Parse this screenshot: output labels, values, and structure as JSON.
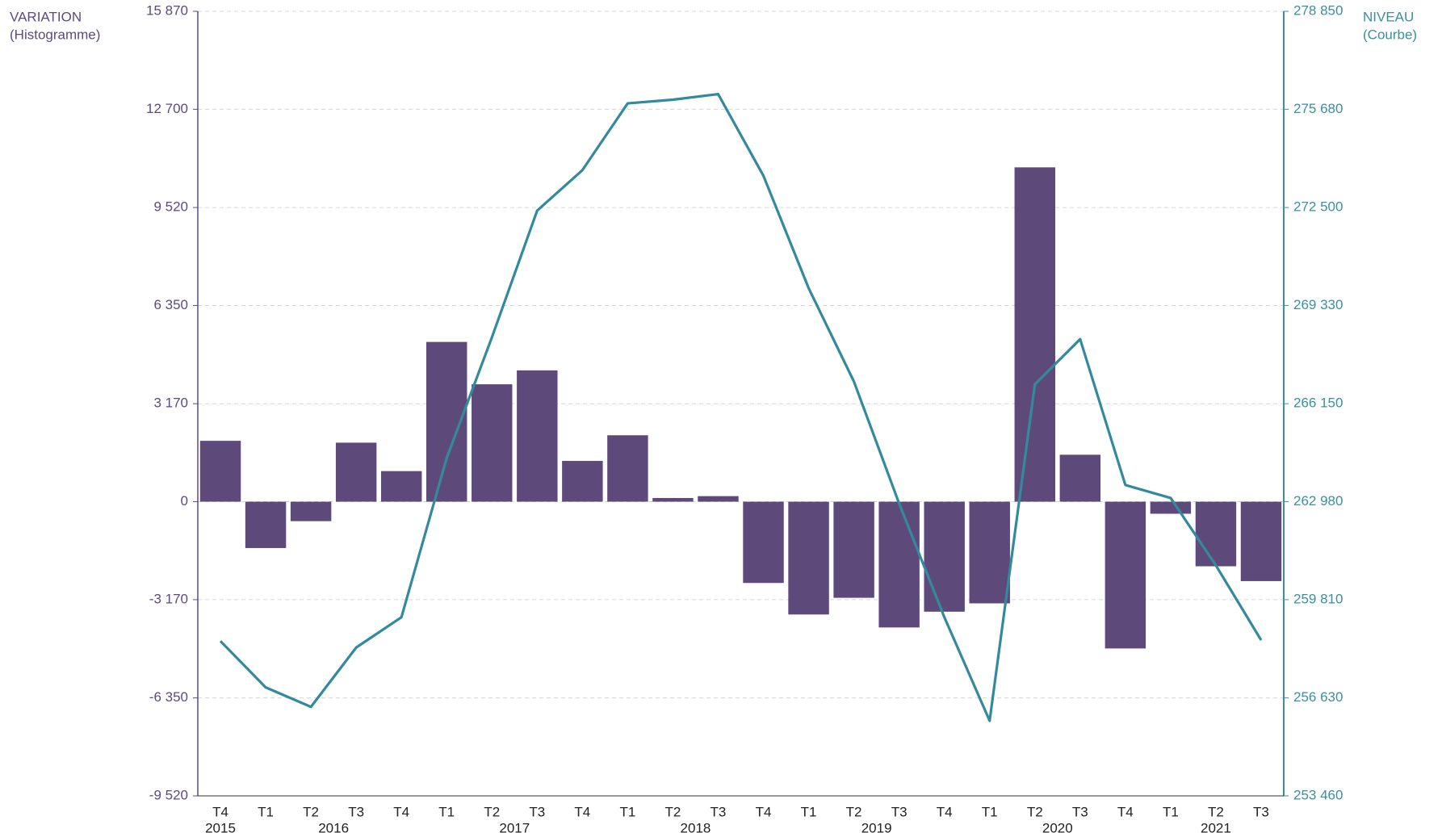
{
  "chart_data": {
    "type": "bar",
    "ylabel": [
      "VARIATION",
      "(Histogramme)"
    ],
    "y2label": [
      "NIVEAU",
      "(Courbe)"
    ],
    "categories": [
      "T4",
      "T1",
      "T2",
      "T3",
      "T4",
      "T1",
      "T2",
      "T3",
      "T4",
      "T1",
      "T2",
      "T3",
      "T4",
      "T1",
      "T2",
      "T3",
      "T4",
      "T1",
      "T2",
      "T3",
      "T4",
      "T1",
      "T2",
      "T3"
    ],
    "years": [
      "2015",
      "2016",
      "2017",
      "2018",
      "2019",
      "2020",
      "2021"
    ],
    "series": [
      {
        "name": "VARIATION",
        "type": "bar",
        "axis": "y",
        "color": "#5e4a7a",
        "values": [
          1970,
          -1500,
          -630,
          1910,
          990,
          5170,
          3800,
          4250,
          1320,
          2150,
          120,
          180,
          -2630,
          -3650,
          -3110,
          -4070,
          -3560,
          -3290,
          10820,
          1520,
          -4750,
          -390,
          -2090,
          -2570
        ]
      },
      {
        "name": "NIVEAU",
        "type": "line",
        "axis": "y2",
        "color": "#338a9c",
        "values": [
          258470,
          256970,
          256340,
          258260,
          259240,
          264390,
          268300,
          272400,
          273710,
          275870,
          275990,
          276170,
          273530,
          269890,
          266870,
          262920,
          259240,
          255890,
          266780,
          268240,
          263520,
          263100,
          260920,
          258500
        ]
      }
    ],
    "ylim": [
      -9520,
      15870
    ],
    "yticks": [
      {
        "value": -9520,
        "label": "-9 520"
      },
      {
        "value": -6350,
        "label": "-6 350"
      },
      {
        "value": -3170,
        "label": "-3 170"
      },
      0,
      {
        "value": 3170,
        "label": "3 170"
      },
      {
        "value": 6350,
        "label": "6 350"
      },
      {
        "value": 9520,
        "label": "9 520"
      },
      {
        "value": 12700,
        "label": "12 700"
      },
      {
        "value": 15870,
        "label": "15 870"
      }
    ],
    "y2lim": [
      253460,
      278850
    ],
    "y2ticks": [
      {
        "value": 253460,
        "label": "253 460"
      },
      {
        "value": 256630,
        "label": "256 630"
      },
      {
        "value": 259810,
        "label": "259 810"
      },
      {
        "value": 262980,
        "label": "262 980"
      },
      {
        "value": 266150,
        "label": "266 150"
      },
      {
        "value": 269330,
        "label": "269 330"
      },
      {
        "value": 272500,
        "label": "272 500"
      },
      {
        "value": 275680,
        "label": "275 680"
      },
      {
        "value": 278850,
        "label": "278 850"
      }
    ],
    "y_color": "#5b4a80",
    "y2_color": "#3a8fa0",
    "grid": true
  }
}
